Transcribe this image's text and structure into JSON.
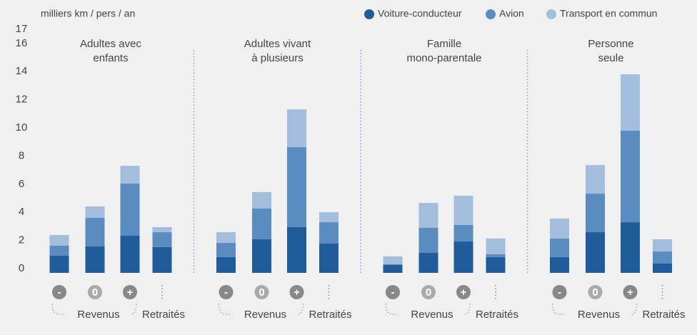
{
  "chart_data": {
    "type": "bar",
    "stacked": true,
    "ylabel": "milliers km / pers / an",
    "ylim": [
      0,
      17
    ],
    "yticks": [
      0,
      2,
      4,
      6,
      8,
      10,
      12,
      14,
      16,
      17
    ],
    "groups": [
      [
        "Adultes avec",
        "enfants"
      ],
      [
        "Adultes vivant",
        "à plusieurs"
      ],
      [
        "Famille",
        "mono-parentale"
      ],
      [
        "Personne",
        "seule"
      ]
    ],
    "income_label": "Revenus",
    "retired_label": "Retraités",
    "categories": [
      "-",
      "0",
      "+",
      null,
      "-",
      "0",
      "+",
      null,
      "-",
      "0",
      "+",
      null,
      "-",
      "0",
      "+",
      null
    ],
    "series": [
      {
        "name": "Voiture-conducteur",
        "color": "#1f5c99",
        "values": [
          1.22,
          1.88,
          2.64,
          1.83,
          1.12,
          2.39,
          3.25,
          2.08,
          0.56,
          1.42,
          2.23,
          1.12,
          1.12,
          2.89,
          3.6,
          0.66
        ]
      },
      {
        "name": "Avion",
        "color": "#5b8cc0",
        "values": [
          0.71,
          2.03,
          3.71,
          1.06,
          1.01,
          2.18,
          5.68,
          1.52,
          0.05,
          1.78,
          1.17,
          0.2,
          1.32,
          2.74,
          6.5,
          0.86
        ]
      },
      {
        "name": "Transport en commun",
        "color": "#a3bddd",
        "values": [
          0.76,
          0.81,
          1.26,
          0.36,
          0.76,
          1.17,
          2.69,
          0.71,
          0.56,
          1.77,
          2.08,
          1.12,
          1.42,
          2.03,
          4.01,
          0.87
        ]
      }
    ]
  }
}
